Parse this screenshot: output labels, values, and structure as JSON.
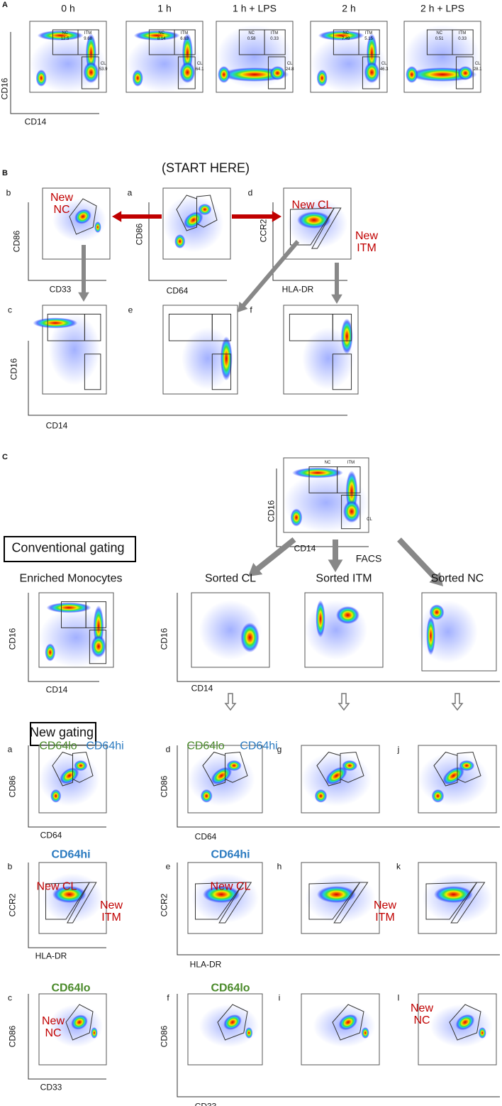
{
  "panel_a": {
    "label": "A",
    "y_axis": "CD16",
    "x_axis": "CD14",
    "gate_names": [
      "NC",
      "ITM",
      "CL"
    ],
    "plots": [
      {
        "title": "0 h",
        "nc": "12.5",
        "itm": "9.68",
        "cl": "53.9"
      },
      {
        "title": "1 h",
        "nc": "8.14",
        "itm": "6.63",
        "cl": "64.1"
      },
      {
        "title": "1 h + LPS",
        "nc": "0.58",
        "itm": "0.33",
        "cl": "24.8"
      },
      {
        "title": "2 h",
        "nc": "7.49",
        "itm": "5.15",
        "cl": "46.3"
      },
      {
        "title": "2 h + LPS",
        "nc": "0.51",
        "itm": "0.33",
        "cl": "28.1"
      }
    ]
  },
  "panel_b": {
    "label": "B",
    "note": "(START HERE)",
    "letters": [
      "b",
      "a",
      "d",
      "c",
      "e",
      "f"
    ],
    "new_nc": "New NC",
    "new_cl": "New CL",
    "new_itm": "New ITM",
    "axes": {
      "cd86": "CD86",
      "cd33": "CD33",
      "cd64": "CD64",
      "ccr2": "CCR2",
      "hla": "HLA-DR",
      "cd16": "CD16",
      "cd14": "CD14"
    }
  },
  "panel_c": {
    "label": "C",
    "gate_names": [
      "NC",
      "ITM",
      "CL"
    ],
    "facs": "FACS",
    "conventional": "Conventional gating",
    "new_gating": "New gating",
    "columns": [
      "Enriched Monocytes",
      "Sorted CL",
      "Sorted ITM",
      "Sorted NC"
    ],
    "letters": [
      "a",
      "d",
      "g",
      "j",
      "b",
      "e",
      "h",
      "k",
      "c",
      "f",
      "i",
      "l"
    ],
    "cd64lo": "CD64lo",
    "cd64hi": "CD64hi",
    "new_cl": "New CL",
    "new_itm": "New ITM",
    "new_nc": "New NC",
    "axes": {
      "cd16": "CD16",
      "cd14": "CD14",
      "cd86": "CD86",
      "cd64": "CD64",
      "ccr2": "CCR2",
      "hla": "HLA-DR",
      "cd33": "CD33"
    }
  }
}
